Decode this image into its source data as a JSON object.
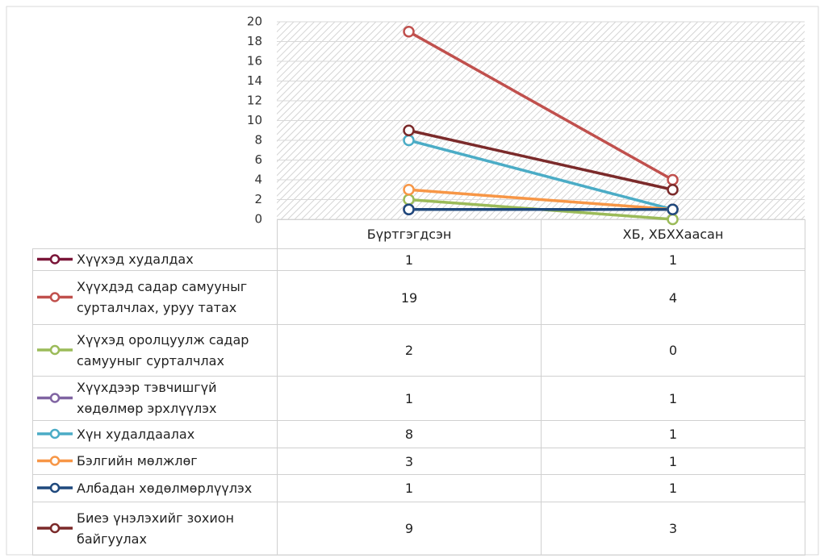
{
  "chart_data": {
    "type": "line",
    "categories": [
      "Бүртгэгдсэн",
      "ХБ, ХБХХаасан"
    ],
    "ylim": [
      0,
      20
    ],
    "yticks": [
      0,
      2,
      4,
      6,
      8,
      10,
      12,
      14,
      16,
      18,
      20
    ],
    "grid": true,
    "series": [
      {
        "name": "Хүүхэд худалдах",
        "color": "#7a1538",
        "values": [
          1,
          1
        ]
      },
      {
        "name": "Хүүхдэд садар самууныг сурталчлах, уруу татах",
        "color": "#c0504d",
        "values": [
          19,
          4
        ]
      },
      {
        "name": "Хүүхэд оролцуулж садар самууныг сурталчлах",
        "color": "#9bbb59",
        "values": [
          2,
          0
        ]
      },
      {
        "name": "Хүүхдээр тэвчишгүй хөдөлмөр эрхлүүлэх",
        "color": "#8064a2",
        "values": [
          1,
          1
        ]
      },
      {
        "name": "Хүн худалдаалах",
        "color": "#4bacc6",
        "values": [
          8,
          1
        ]
      },
      {
        "name": "Бэлгийн мөлжлөг",
        "color": "#f79646",
        "values": [
          3,
          1
        ]
      },
      {
        "name": "Албадан хөдөлмөрлүүлэх",
        "color": "#1f497d",
        "values": [
          1,
          1
        ]
      },
      {
        "name": "Биеэ үнэлэхийг зохион байгуулах",
        "color": "#7b2a2a",
        "values": [
          9,
          3
        ]
      }
    ]
  }
}
